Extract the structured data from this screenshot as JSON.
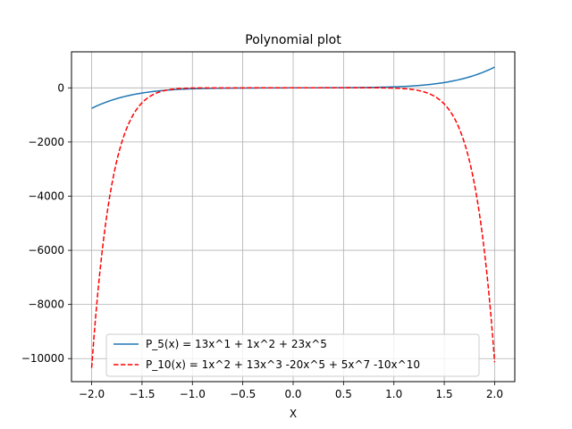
{
  "chart_data": {
    "type": "line",
    "title": "Polynomial plot",
    "xlabel": "X",
    "ylabel": "",
    "xlim": [
      -2.2,
      2.2
    ],
    "ylim": [
      -10850,
      1330
    ],
    "x_ticks": [
      -2.0,
      -1.5,
      -1.0,
      -0.5,
      0.0,
      0.5,
      1.0,
      1.5,
      2.0
    ],
    "x_tick_labels": [
      "−2.0",
      "−1.5",
      "−1.0",
      "−0.5",
      "0.0",
      "0.5",
      "1.0",
      "1.5",
      "2.0"
    ],
    "y_ticks": [
      0,
      -2000,
      -4000,
      -6000,
      -8000,
      -10000
    ],
    "y_tick_labels": [
      "0",
      "−2000",
      "−4000",
      "−6000",
      "−8000",
      "−10000"
    ],
    "grid": true,
    "legend_position": "lower-center",
    "series": [
      {
        "name": "P_5(x) =  13x^1 + 1x^2 + 23x^5",
        "color": "#1f77b4",
        "linestyle": "solid",
        "coefficients": {
          "1": 13,
          "2": 1,
          "5": 23
        },
        "x_range": [
          -2,
          2
        ]
      },
      {
        "name": "P_10(x) =  1x^2 + 13x^3  -20x^5 + 5x^7  -10x^10",
        "color": "#ff0000",
        "linestyle": "dashed",
        "coefficients": {
          "2": 1,
          "3": 13,
          "5": -20,
          "7": 5,
          "10": -10
        },
        "x_range": [
          -2,
          2
        ]
      }
    ]
  }
}
